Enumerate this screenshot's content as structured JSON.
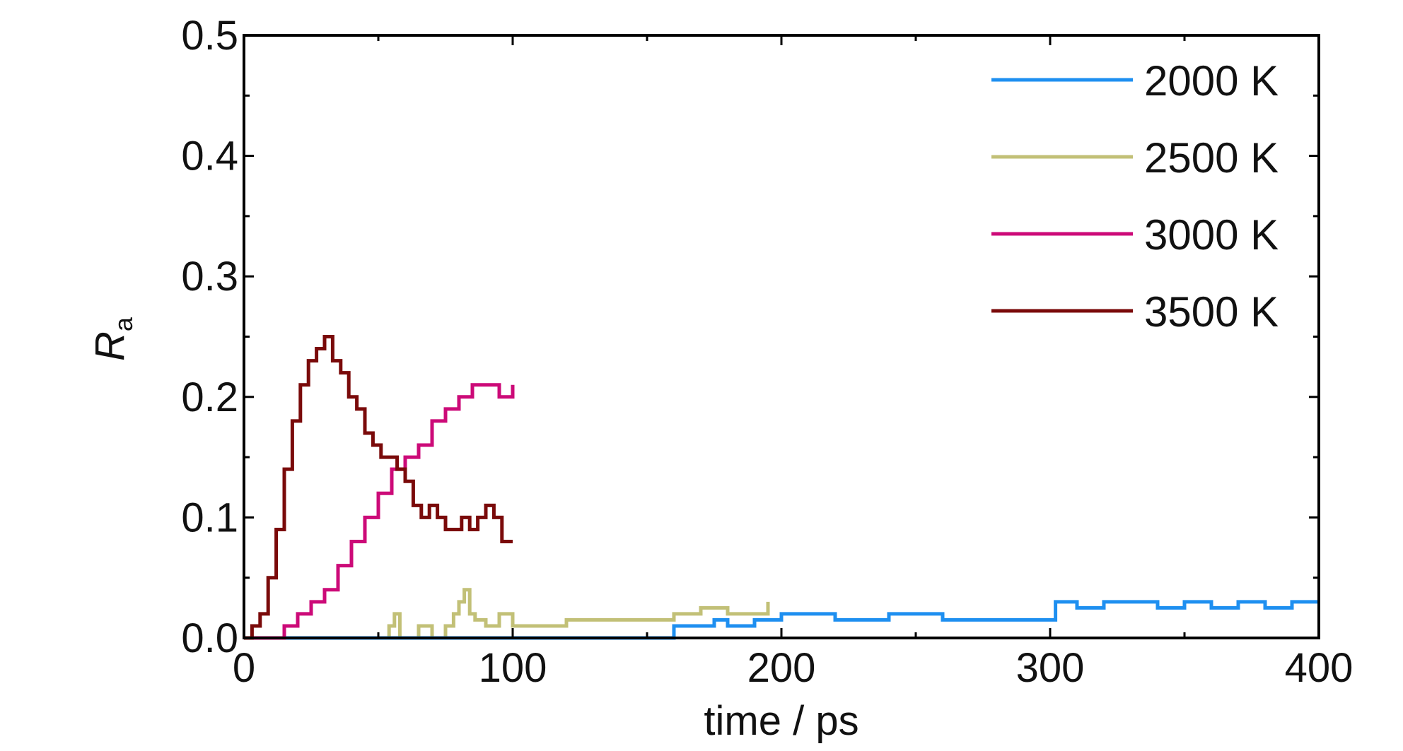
{
  "chart_data": {
    "type": "line",
    "title": "",
    "xlabel": "time / ps",
    "ylabel": {
      "symbol": "R",
      "subscript": "a"
    },
    "xlim": [
      0,
      400
    ],
    "ylim": [
      0,
      0.5
    ],
    "xticks": [
      0,
      100,
      200,
      300,
      400
    ],
    "xtick_labels": [
      "0",
      "100",
      "200",
      "300",
      "400"
    ],
    "yticks": [
      0,
      0.1,
      0.2,
      0.3,
      0.4,
      0.5
    ],
    "ytick_labels": [
      "0.0",
      "0.1",
      "0.2",
      "0.3",
      "0.4",
      "0.5"
    ],
    "grid": false,
    "legend_position": "top-right",
    "series": [
      {
        "name": "2000 K",
        "color": "#1e8ff0",
        "x": [
          0,
          150,
          158,
          160,
          165,
          175,
          180,
          190,
          195,
          200,
          210,
          220,
          240,
          260,
          280,
          295,
          300,
          302,
          305,
          310,
          320,
          330,
          340,
          350,
          360,
          370,
          380,
          390,
          400
        ],
        "y": [
          0.0,
          0.0,
          0.0,
          0.01,
          0.01,
          0.015,
          0.01,
          0.015,
          0.015,
          0.02,
          0.02,
          0.015,
          0.02,
          0.015,
          0.015,
          0.015,
          0.015,
          0.03,
          0.03,
          0.025,
          0.03,
          0.03,
          0.025,
          0.03,
          0.025,
          0.03,
          0.025,
          0.03,
          0.03
        ]
      },
      {
        "name": "2500 K",
        "color": "#c2c077",
        "x": [
          0,
          30,
          50,
          54,
          56,
          58,
          65,
          70,
          75,
          78,
          80,
          82,
          84,
          86,
          90,
          95,
          100,
          110,
          120,
          130,
          140,
          150,
          160,
          165,
          170,
          180,
          190,
          195
        ],
        "y": [
          0.0,
          0.0,
          0.0,
          0.01,
          0.02,
          0.0,
          0.01,
          0.0,
          0.01,
          0.02,
          0.03,
          0.04,
          0.02,
          0.015,
          0.01,
          0.02,
          0.01,
          0.01,
          0.015,
          0.015,
          0.015,
          0.015,
          0.02,
          0.02,
          0.025,
          0.02,
          0.02,
          0.03
        ]
      },
      {
        "name": "3000 K",
        "color": "#cc0a78",
        "x": [
          0,
          5,
          10,
          15,
          20,
          25,
          30,
          35,
          40,
          45,
          50,
          55,
          60,
          65,
          70,
          75,
          80,
          85,
          90,
          95,
          100
        ],
        "y": [
          0.0,
          0.0,
          0.0,
          0.01,
          0.02,
          0.03,
          0.04,
          0.06,
          0.08,
          0.1,
          0.12,
          0.14,
          0.15,
          0.16,
          0.18,
          0.19,
          0.2,
          0.21,
          0.21,
          0.2,
          0.21
        ]
      },
      {
        "name": "3500 K",
        "color": "#7a0a0a",
        "x": [
          0,
          3,
          6,
          9,
          12,
          15,
          18,
          21,
          24,
          27,
          30,
          33,
          36,
          39,
          42,
          45,
          48,
          51,
          54,
          57,
          60,
          63,
          66,
          69,
          72,
          75,
          78,
          81,
          84,
          87,
          90,
          93,
          96,
          100
        ],
        "y": [
          0.0,
          0.01,
          0.02,
          0.05,
          0.09,
          0.14,
          0.18,
          0.21,
          0.23,
          0.24,
          0.25,
          0.23,
          0.22,
          0.2,
          0.19,
          0.17,
          0.16,
          0.15,
          0.15,
          0.14,
          0.13,
          0.11,
          0.1,
          0.11,
          0.1,
          0.09,
          0.09,
          0.1,
          0.09,
          0.1,
          0.11,
          0.1,
          0.08,
          0.08
        ]
      }
    ]
  }
}
